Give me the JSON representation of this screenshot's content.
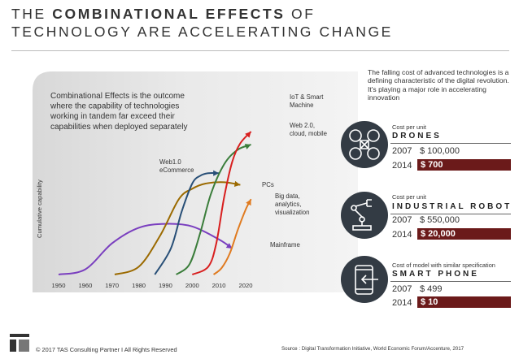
{
  "header": {
    "title_line1_pre": "THE ",
    "title_line1_bold": "COMBINATIONAL EFFECTS",
    "title_line1_post": " OF",
    "title_line2": "TECHNOLOGY ARE ACCELERATING CHANGE"
  },
  "chart_data": {
    "type": "line",
    "ylabel": "Cumulative capability",
    "x_ticks": [
      "1950",
      "1960",
      "1970",
      "1980",
      "1990",
      "2000",
      "2010",
      "2020"
    ],
    "xlim": [
      1950,
      2020
    ],
    "ylim": [
      0,
      100
    ],
    "annotation": "Combinational Effects is the outcome where the capability of technologies working in tandem far exceed their capabilities when deployed separately",
    "series": [
      {
        "name": "Mainframe",
        "label": "Mainframe",
        "color": "#7a3fbf",
        "x": [
          1950,
          1960,
          1970,
          1980,
          1990,
          2000,
          2010,
          2015
        ],
        "y": [
          0,
          4,
          24,
          36,
          39,
          37,
          27,
          20
        ]
      },
      {
        "name": "PCs",
        "label": "PCs",
        "color": "#9b6a00",
        "x": [
          1971,
          1980,
          1988,
          1995,
          2000,
          2005,
          2012,
          2018
        ],
        "y": [
          0,
          6,
          30,
          58,
          66,
          70,
          71,
          69
        ]
      },
      {
        "name": "Web1.0",
        "label_lines": [
          "Web1.0",
          "eCommerce"
        ],
        "color": "#284f77",
        "x": [
          1986,
          1992,
          1996,
          2000,
          2003,
          2006,
          2010
        ],
        "y": [
          0,
          20,
          48,
          70,
          76,
          78,
          78
        ]
      },
      {
        "name": "Web2.0",
        "label_lines": [
          "Web 2.0,",
          "cloud, mobile"
        ],
        "color": "#3a7d3a",
        "x": [
          1994,
          1999,
          2003,
          2007,
          2012,
          2017,
          2022
        ],
        "y": [
          0,
          8,
          32,
          62,
          85,
          96,
          100
        ]
      },
      {
        "name": "IoT",
        "label_lines": [
          "IoT & Smart",
          "Machine"
        ],
        "color": "#d81f1f",
        "x": [
          2000,
          2006,
          2009,
          2012,
          2015,
          2018,
          2022
        ],
        "y": [
          0,
          6,
          24,
          60,
          87,
          101,
          110
        ]
      },
      {
        "name": "Big data",
        "label_lines": [
          "Big data,",
          "analytics,",
          "visualization"
        ],
        "color": "#e07b20",
        "x": [
          2008,
          2011,
          2014,
          2017,
          2020,
          2022
        ],
        "y": [
          0,
          5,
          16,
          34,
          50,
          58
        ]
      }
    ]
  },
  "intro_text": "The falling cost of advanced technologies is a defining characteristic of the digital revolution. It's playing a major role in accelerating innovation",
  "cards": [
    {
      "icon": "drone-icon",
      "cost_label": "Cost per unit",
      "name": "DRONES",
      "year1": "2007",
      "val1": "$ 100,000",
      "year2": "2014",
      "val2": "$ 700"
    },
    {
      "icon": "robot-arm-icon",
      "cost_label": "Cost per unit",
      "name": "INDUSTRIAL ROBOT",
      "year1": "2007",
      "val1": "$ 550,000",
      "year2": "2014",
      "val2": "$ 20,000"
    },
    {
      "icon": "smartphone-icon",
      "cost_label": "Cost of model with similar specification",
      "name": "SMART PHONE",
      "year1": "2007",
      "val1": "$ 499",
      "year2": "2014",
      "val2": "$ 10"
    }
  ],
  "footer": {
    "copyright": "© 2017 TAS Consulting Partner  I  All Rights Reserved",
    "source": "Source : Digital Transformation Initiative, World Economic Forum/Accenture, 2017"
  },
  "colors": {
    "accent": "#6b1a1a",
    "icon_bg": "#333b44",
    "panel_bg": "#e4e4e4"
  }
}
